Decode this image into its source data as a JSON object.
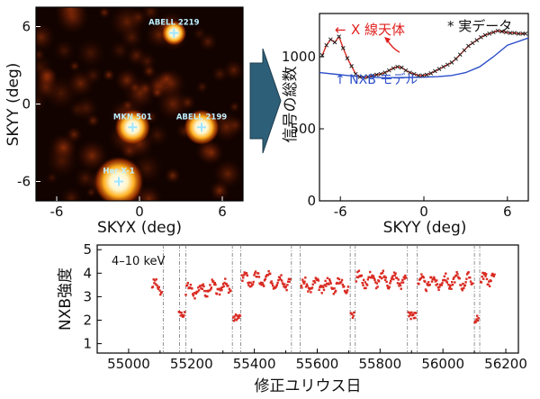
{
  "colors": {
    "annotation_red": "#e0201e",
    "nxb_blue": "#2d4fc9",
    "arrow_teal": "#2e5f78",
    "data_red": "#d92b22",
    "cross": "#9fe6ff"
  },
  "chart_data": [
    {
      "type": "heatmap",
      "xlabel": "SKYX (deg)",
      "ylabel": "SKYY (deg)",
      "xlim": [
        -7.5,
        7.5
      ],
      "ylim": [
        -7.5,
        7.5
      ],
      "x_ticks": [
        "-6",
        "0",
        "6"
      ],
      "y_ticks": [
        "-6",
        "0",
        "6"
      ],
      "sources": [
        {
          "name": "ABELL 2219",
          "x": 2.5,
          "y": 5.5
        },
        {
          "name": "MKN 501",
          "x": -0.5,
          "y": -1.8
        },
        {
          "name": "ABELL 2199",
          "x": 4.5,
          "y": -1.8
        },
        {
          "name": "Her X-1",
          "x": -1.5,
          "y": -6.0
        }
      ]
    },
    {
      "type": "line",
      "xlabel": "SKYY (deg)",
      "ylabel": "信号の総数",
      "xlim": [
        -7.5,
        7.5
      ],
      "ylim": [
        0,
        1300
      ],
      "x_ticks": [
        "-6",
        "0",
        "6"
      ],
      "y_ticks": [
        "0",
        "500",
        "1000"
      ],
      "series": [
        {
          "name": "実データ",
          "x": [
            -7.3,
            -7.0,
            -6.7,
            -6.4,
            -6.1,
            -5.8,
            -5.5,
            -5.2,
            -4.9,
            -4.6,
            -4.3,
            -4.0,
            -3.7,
            -3.4,
            -3.1,
            -2.8,
            -2.5,
            -2.2,
            -1.9,
            -1.6,
            -1.3,
            -1.0,
            -0.7,
            -0.4,
            -0.1,
            0.2,
            0.5,
            0.8,
            1.1,
            1.4,
            1.7,
            2.0,
            2.3,
            2.6,
            2.9,
            3.2,
            3.5,
            3.8,
            4.1,
            4.4,
            4.7,
            5.0,
            5.3,
            5.6,
            5.9,
            6.2,
            6.5,
            6.8,
            7.1,
            7.3
          ],
          "values": [
            1010,
            1080,
            1120,
            1100,
            1140,
            1060,
            990,
            935,
            880,
            860,
            855,
            860,
            870,
            875,
            880,
            890,
            905,
            920,
            930,
            925,
            905,
            890,
            880,
            870,
            870,
            875,
            885,
            900,
            915,
            930,
            945,
            960,
            985,
            1015,
            1045,
            1075,
            1095,
            1115,
            1135,
            1150,
            1160,
            1170,
            1180,
            1175,
            1170,
            1165,
            1165,
            1160,
            1160,
            1160
          ]
        },
        {
          "name": "NXB モデル",
          "x": [
            -7.5,
            -6.0,
            -5.0,
            -4.0,
            -3.0,
            -2.0,
            -1.0,
            0.0,
            1.0,
            2.0,
            3.0,
            4.0,
            5.0,
            6.0,
            7.5
          ],
          "values": [
            890,
            875,
            865,
            858,
            855,
            855,
            856,
            858,
            862,
            870,
            890,
            930,
            1000,
            1080,
            1130
          ]
        }
      ],
      "annotations": [
        {
          "text": "X 線天体",
          "color": "red"
        },
        {
          "text": "* 実データ"
        },
        {
          "text": "↑ NXB モデル",
          "color": "blue"
        }
      ]
    },
    {
      "type": "scatter",
      "xlabel": "修正ユリウス日",
      "ylabel": "NXB強度",
      "annotation": "4–10 keV",
      "xlim": [
        54900,
        56240
      ],
      "ylim": [
        0.6,
        5.2
      ],
      "x_ticks": [
        "55000",
        "55200",
        "55400",
        "55600",
        "55800",
        "56000",
        "56200"
      ],
      "y_ticks": [
        "1",
        "2",
        "3",
        "4",
        "5"
      ],
      "vertical_lines_mjd": [
        55110,
        55162,
        55182,
        55330,
        55357,
        55518,
        55546,
        55705,
        55721,
        55887,
        55918,
        56100,
        56117
      ],
      "segments": [
        {
          "start": 55075,
          "end": 55106,
          "base": 3.45,
          "slope": -0.004
        },
        {
          "start": 55182,
          "end": 55325,
          "base": 3.25,
          "slope": 0.0012
        },
        {
          "start": 55360,
          "end": 55514,
          "base": 3.75,
          "slope": -0.0006
        },
        {
          "start": 55549,
          "end": 55700,
          "base": 3.45,
          "slope": 0.0005
        },
        {
          "start": 55724,
          "end": 55884,
          "base": 3.75,
          "slope": -0.0003
        },
        {
          "start": 55921,
          "end": 56096,
          "base": 3.6,
          "slope": 0.0004
        },
        {
          "start": 56120,
          "end": 56165,
          "base": 3.65,
          "slope": 0.006
        }
      ],
      "low_clusters": [
        {
          "start": 55160,
          "end": 55178,
          "value": 2.25
        },
        {
          "start": 55333,
          "end": 55355,
          "value": 2.1
        },
        {
          "start": 55707,
          "end": 55718,
          "value": 2.2
        },
        {
          "start": 55890,
          "end": 55914,
          "value": 2.2
        },
        {
          "start": 56101,
          "end": 56114,
          "value": 2.05
        }
      ]
    }
  ]
}
